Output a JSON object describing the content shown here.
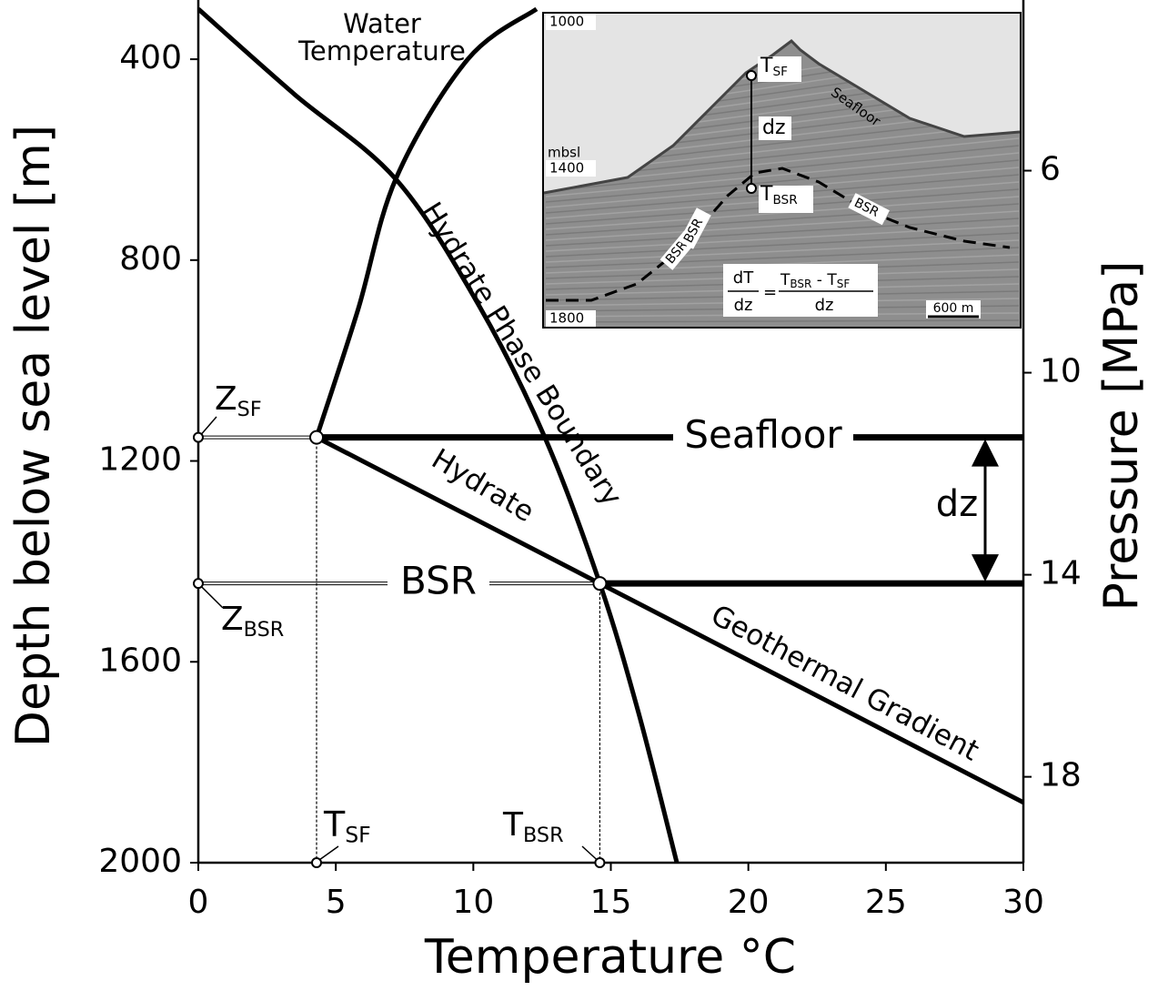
{
  "chart_data": {
    "type": "line",
    "xlabel": "Temperature °C",
    "ylabel": "Depth below sea level [m]",
    "y2label": "Pressure [MPa]",
    "xlim": [
      0,
      30
    ],
    "xticks": [
      0,
      5,
      10,
      15,
      20,
      25,
      30
    ],
    "ylim": [
      300,
      2000
    ],
    "y_inverted": true,
    "yticks": [
      400,
      800,
      1200,
      1600,
      2000
    ],
    "y2lim": [
      2.8,
      19.7
    ],
    "y2ticks": [
      6,
      10,
      14,
      18
    ],
    "series": [
      {
        "name": "Water Temperature",
        "color": "#000000",
        "x": [
          12.3,
          9.8,
          7.2,
          5.8,
          4.3
        ],
        "values": [
          300,
          400,
          636,
          900,
          1153
        ]
      },
      {
        "name": "Hydrate Phase Boundary",
        "color": "#000000",
        "x": [
          0,
          3.5,
          7.2,
          10.2,
          12.6,
          14.6,
          16.0,
          17.4
        ],
        "values": [
          300,
          470,
          640,
          890,
          1153,
          1444,
          1700,
          2000
        ]
      },
      {
        "name": "Geothermal Gradient",
        "color": "#000000",
        "x": [
          4.3,
          14.6,
          30
        ],
        "values": [
          1153,
          1444,
          1880
        ]
      }
    ],
    "hydrate_label": "Hydrate",
    "seafloor": {
      "label": "Seafloor",
      "depth": 1153,
      "temperature": 4.3,
      "z_label": {
        "text": "Z",
        "sub": "SF"
      },
      "t_label": {
        "text": "T",
        "sub": "SF"
      }
    },
    "bsr": {
      "label": "BSR",
      "depth": 1444,
      "temperature": 14.6,
      "z_label": {
        "text": "Z",
        "sub": "BSR"
      },
      "t_label": {
        "text": "T",
        "sub": "BSR"
      }
    },
    "dz_label": "dz",
    "inset": {
      "yticks": [
        1000,
        1400,
        1800
      ],
      "unit": "mbsl",
      "t_sf": {
        "text": "T",
        "sub": "SF"
      },
      "dz": "dz",
      "t_bsr": {
        "text": "T",
        "sub": "BSR"
      },
      "seafloor": "Seafloor",
      "bsr": [
        "BSR",
        "BSR",
        "BSR"
      ],
      "equation": {
        "lhs_num": "dT",
        "lhs_den": "dz",
        "eq": "=",
        "t1": "T",
        "s1": "BSR",
        "minus": " - T",
        "s2": "SF",
        "rhs_den": "dz"
      },
      "scale": "600 m"
    }
  }
}
